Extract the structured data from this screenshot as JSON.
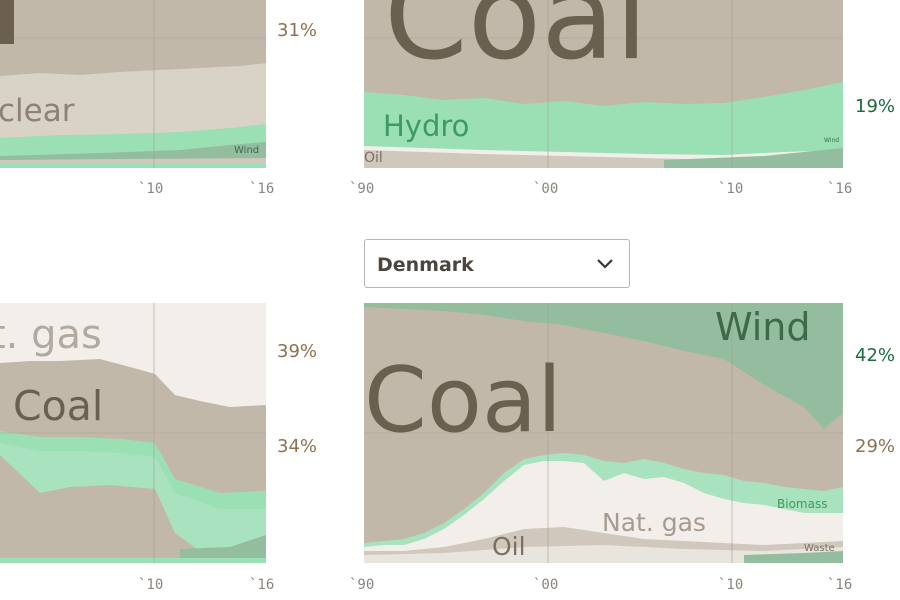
{
  "selector": {
    "value": "Denmark"
  },
  "colors": {
    "coal": "#c2b8aa",
    "coal_text": "#6b5f50",
    "hydro": "#9ae0b4",
    "hydro_text": "#3e9a60",
    "biomass": "#a8e2bf",
    "wind": "#94bd9f",
    "wind_text": "#3f6a4a",
    "natgas": "#f2efea",
    "natgas_text": "#a69b90",
    "oil": "#d0c8bd",
    "nuclear": "#d9d2c7",
    "waste": "#e8e4de",
    "pct_brown": "#8e7150",
    "pct_green": "#1b6b3e"
  },
  "chart_data": [
    {
      "type": "area",
      "panel": "top-left",
      "series_labels": [
        "clear",
        "Wind"
      ],
      "x_ticks": [
        "`10",
        "`16"
      ],
      "right_labels": [
        {
          "text": "31%",
          "color": "#8e7150"
        }
      ]
    },
    {
      "type": "area",
      "panel": "top-right",
      "series_labels": [
        "Coal",
        "Hydro",
        "Oil",
        "Wind"
      ],
      "x_ticks": [
        "`90",
        "`00",
        "`10",
        "`16"
      ],
      "x": [
        1990,
        1992,
        1994,
        1996,
        1998,
        2000,
        2002,
        2004,
        2006,
        2008,
        2010,
        2012,
        2014,
        2016
      ],
      "hydro_top": [
        20,
        19,
        20,
        18,
        20,
        19,
        20,
        19,
        19,
        18,
        18,
        19,
        20,
        21
      ],
      "right_labels": [
        {
          "text": "19%",
          "color": "#1b6b3e"
        }
      ]
    },
    {
      "type": "area",
      "panel": "bottom-left",
      "series_labels": [
        "t. gas",
        "Coal"
      ],
      "x_ticks": [
        "`10",
        "`16"
      ],
      "right_labels": [
        {
          "text": "39%",
          "color": "#8e7150"
        },
        {
          "text": "34%",
          "color": "#8e7150"
        }
      ]
    },
    {
      "type": "area",
      "panel": "bottom-right",
      "country": "Denmark",
      "series_labels": [
        "Wind",
        "Coal",
        "Nat. gas",
        "Oil",
        "Biomass",
        "Waste"
      ],
      "x_ticks": [
        "`90",
        "`00",
        "`10",
        "`16"
      ],
      "x": [
        1990,
        1992,
        1994,
        1996,
        1998,
        2000,
        2002,
        2004,
        2006,
        2008,
        2010,
        2012,
        2014,
        2016
      ],
      "wind": [
        1,
        2,
        3,
        5,
        7,
        12,
        14,
        17,
        18,
        19,
        21,
        30,
        38,
        42
      ],
      "coal": [
        80,
        79,
        78,
        70,
        60,
        49,
        48,
        50,
        52,
        51,
        47,
        40,
        35,
        29
      ],
      "right_labels": [
        {
          "text": "42%",
          "color": "#1b6b3e"
        },
        {
          "text": "29%",
          "color": "#8e7150"
        }
      ]
    }
  ]
}
